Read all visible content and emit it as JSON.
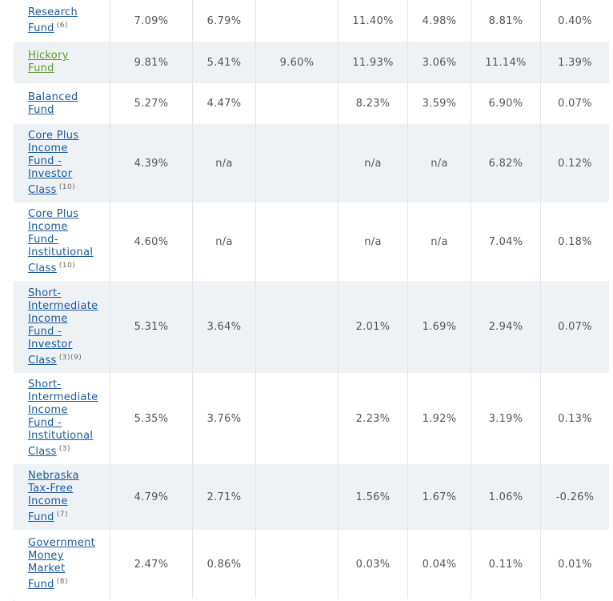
{
  "rows": [
    {
      "name": "Research\nFund",
      "note": "(6)",
      "green": false,
      "cells": [
        "7.09%",
        "6.79%",
        "",
        "11.40%",
        "4.98%",
        "8.81%",
        "0.40%"
      ]
    },
    {
      "name": "Hickory\nFund",
      "note": "",
      "green": true,
      "cells": [
        "9.81%",
        "5.41%",
        "9.60%",
        "11.93%",
        "3.06%",
        "11.14%",
        "1.39%"
      ]
    },
    {
      "name": "Balanced\nFund",
      "note": "",
      "green": false,
      "cells": [
        "5.27%",
        "4.47%",
        "",
        "8.23%",
        "3.59%",
        "6.90%",
        "0.07%"
      ]
    },
    {
      "name": "Core Plus\nIncome\nFund -\nInvestor\nClass",
      "note": "(10)",
      "green": false,
      "cells": [
        "4.39%",
        "n/a",
        "",
        "n/a",
        "n/a",
        "6.82%",
        "0.12%"
      ]
    },
    {
      "name": "Core Plus\nIncome\nFund-\nInstitutional\nClass",
      "note": "(10)",
      "green": false,
      "cells": [
        "4.60%",
        "n/a",
        "",
        "n/a",
        "n/a",
        "7.04%",
        "0.18%"
      ]
    },
    {
      "name": "Short-\nIntermediate\nIncome\nFund -\nInvestor\nClass",
      "note": "(3)(9)",
      "green": false,
      "cells": [
        "5.31%",
        "3.64%",
        "",
        "2.01%",
        "1.69%",
        "2.94%",
        "0.07%"
      ]
    },
    {
      "name": "Short-\nIntermediate\nIncome\nFund -\nInstitutional\nClass",
      "note": "(3)",
      "green": false,
      "cells": [
        "5.35%",
        "3.76%",
        "",
        "2.23%",
        "1.92%",
        "3.19%",
        "0.13%"
      ]
    },
    {
      "name": "Nebraska\nTax-Free\nIncome\nFund",
      "note": "(7)",
      "green": false,
      "cells": [
        "4.79%",
        "2.71%",
        "",
        "1.56%",
        "1.67%",
        "1.06%",
        "-0.26%"
      ]
    },
    {
      "name": "Government\nMoney\nMarket\nFund",
      "note": "(8)",
      "green": false,
      "cells": [
        "2.47%",
        "0.86%",
        "",
        "0.03%",
        "0.04%",
        "0.11%",
        "0.01%"
      ]
    }
  ]
}
